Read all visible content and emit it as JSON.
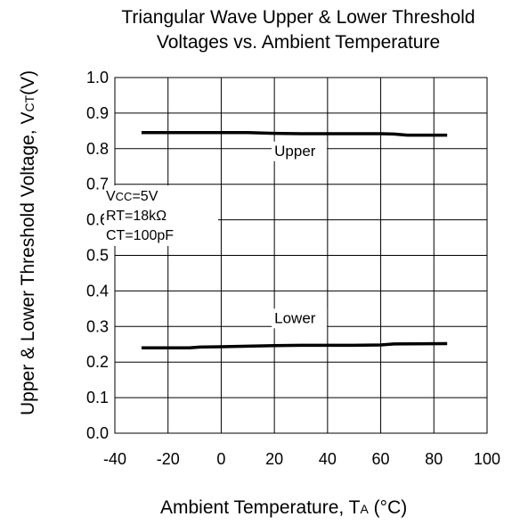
{
  "chart_data": {
    "type": "line",
    "title_lines": [
      "Triangular Wave Upper & Lower Threshold",
      "Voltages vs.  Ambient Temperature"
    ],
    "xlabel": {
      "main": "Ambient Temperature, T",
      "sub": "A",
      "unit": " (°C)"
    },
    "ylabel": {
      "main": "Upper & Lower Threshold Voltage, V",
      "sub": "CT",
      "unit": "(V)"
    },
    "xlim": [
      -40,
      100
    ],
    "ylim": [
      0.0,
      1.0
    ],
    "x_ticks": [
      "-40",
      "-20",
      "0",
      "20",
      "40",
      "60",
      "80",
      "100"
    ],
    "y_ticks": [
      "0.0",
      "0.1",
      "0.2",
      "0.3",
      "0.4",
      "0.5",
      "0.6",
      "0.7",
      "0.8",
      "0.9",
      "1.0"
    ],
    "grid": true,
    "series": [
      {
        "name": "Upper",
        "points": [
          [
            -30,
            0.845
          ],
          [
            -10,
            0.845
          ],
          [
            10,
            0.845
          ],
          [
            20,
            0.843
          ],
          [
            30,
            0.842
          ],
          [
            50,
            0.842
          ],
          [
            60,
            0.842
          ],
          [
            65,
            0.841
          ],
          [
            70,
            0.838
          ],
          [
            85,
            0.838
          ]
        ]
      },
      {
        "name": "Lower",
        "points": [
          [
            -30,
            0.24
          ],
          [
            -12,
            0.24
          ],
          [
            -8,
            0.242
          ],
          [
            0,
            0.243
          ],
          [
            20,
            0.246
          ],
          [
            30,
            0.247
          ],
          [
            50,
            0.247
          ],
          [
            60,
            0.248
          ],
          [
            65,
            0.251
          ],
          [
            85,
            0.252
          ]
        ]
      }
    ],
    "conditions": [
      {
        "main": "V",
        "sub": "CC",
        "rest": "=5V"
      },
      {
        "main": "RT=18kΩ",
        "sub": "",
        "rest": ""
      },
      {
        "main": "CT=100pF",
        "sub": "",
        "rest": ""
      }
    ]
  }
}
